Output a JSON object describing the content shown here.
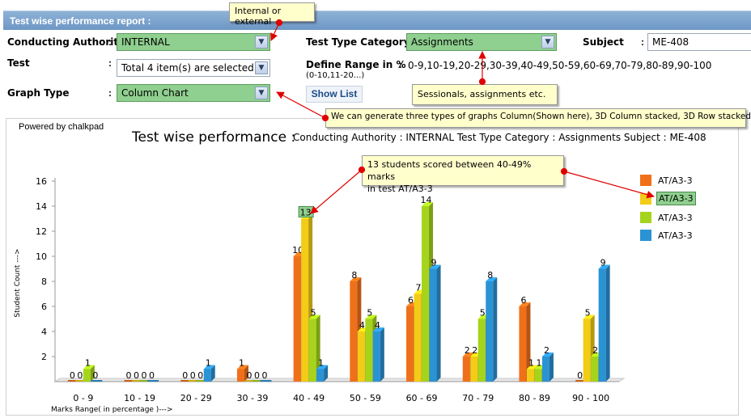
{
  "header": {
    "title": "Test wise performance report :"
  },
  "form": {
    "conducting_authority": {
      "label": "Conducting Authority",
      "value": "INTERNAL"
    },
    "test": {
      "label": "Test",
      "value": "Total 4 item(s) are selected"
    },
    "graph_type": {
      "label": "Graph Type",
      "value": "Column Chart"
    },
    "test_type_category": {
      "label": "Test Type Category",
      "value": "Assignments"
    },
    "subject": {
      "label": "Subject",
      "value": "ME-408"
    },
    "define_range": {
      "label": "Define Range in %",
      "hint": "(0-10,11-20...)",
      "value": "0-9,10-19,20-29,30-39,40-49,50-59,60-69,70-79,80-89,90-100"
    },
    "colon": ":",
    "show_list_label": "Show List"
  },
  "callouts": {
    "authority": "Internal or external",
    "category": "Sessionals, assignments etc.",
    "graph_types": "We can generate three types of graphs Column(Shown here), 3D Column stacked, 3D Row stacked",
    "students_line1": "13 students scored between 40-49% marks",
    "students_line2": "in test AT/A3-3"
  },
  "chart": {
    "powered_by": "Powered by chalkpad",
    "title": "Test wise performance :",
    "subtitle": "Conducting Authority : INTERNAL Test Type Category : Assignments Subject : ME-408"
  },
  "chart_data": {
    "type": "bar",
    "title": "Test wise performance :",
    "subtitle": "Conducting Authority : INTERNAL Test Type Category : Assignments Subject : ME-408",
    "xlabel": "Marks Range( in percentage )--->",
    "ylabel": "Student Count --->",
    "ylim": [
      0,
      16
    ],
    "yticks": [
      2,
      4,
      6,
      8,
      10,
      12,
      14,
      16
    ],
    "grid": false,
    "legend_position": "right",
    "categories": [
      "0 - 9",
      "10 - 19",
      "20 - 29",
      "30 - 39",
      "40 - 49",
      "50 - 59",
      "60 - 69",
      "70 - 79",
      "80 - 89",
      "90 - 100"
    ],
    "series": [
      {
        "name": "AT/A3-3",
        "color": "#f0701a",
        "values": [
          0,
          0,
          0,
          1,
          10,
          8,
          6,
          2,
          6,
          0
        ]
      },
      {
        "name": "AT/A3-3",
        "color": "#f2cc16",
        "values": [
          0,
          0,
          0,
          0,
          13,
          4,
          7,
          2,
          1,
          5
        ]
      },
      {
        "name": "AT/A3-3",
        "color": "#a6d41c",
        "values": [
          1,
          0,
          0,
          0,
          5,
          5,
          14,
          5,
          1,
          2
        ]
      },
      {
        "name": "AT/A3-3",
        "color": "#2a93d4",
        "values": [
          0,
          0,
          1,
          0,
          1,
          4,
          9,
          8,
          2,
          9
        ]
      }
    ],
    "highlight": {
      "series_index": 1,
      "category": "40 - 49"
    }
  }
}
